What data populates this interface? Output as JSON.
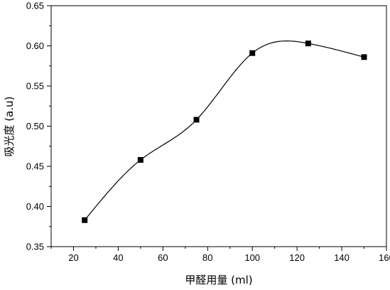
{
  "chart_data": {
    "type": "line",
    "x": [
      25,
      50,
      75,
      100,
      125,
      150
    ],
    "series": [
      {
        "values": [
          0.383,
          0.458,
          0.508,
          0.591,
          0.603,
          0.586
        ]
      }
    ],
    "xlabel": "甲醛用量 (ml)",
    "ylabel": "吸光度 (a.u)",
    "xlim": [
      10,
      160
    ],
    "ylim": [
      0.35,
      0.65
    ],
    "xticks": [
      "20",
      "40",
      "60",
      "80",
      "100",
      "120",
      "140",
      "160"
    ],
    "yticks": [
      "0.35",
      "0.40",
      "0.45",
      "0.50",
      "0.55",
      "0.60",
      "0.65"
    ],
    "marker": "square",
    "line_style": "smooth",
    "line_color": "#000000",
    "grid": false,
    "legend": "none"
  }
}
